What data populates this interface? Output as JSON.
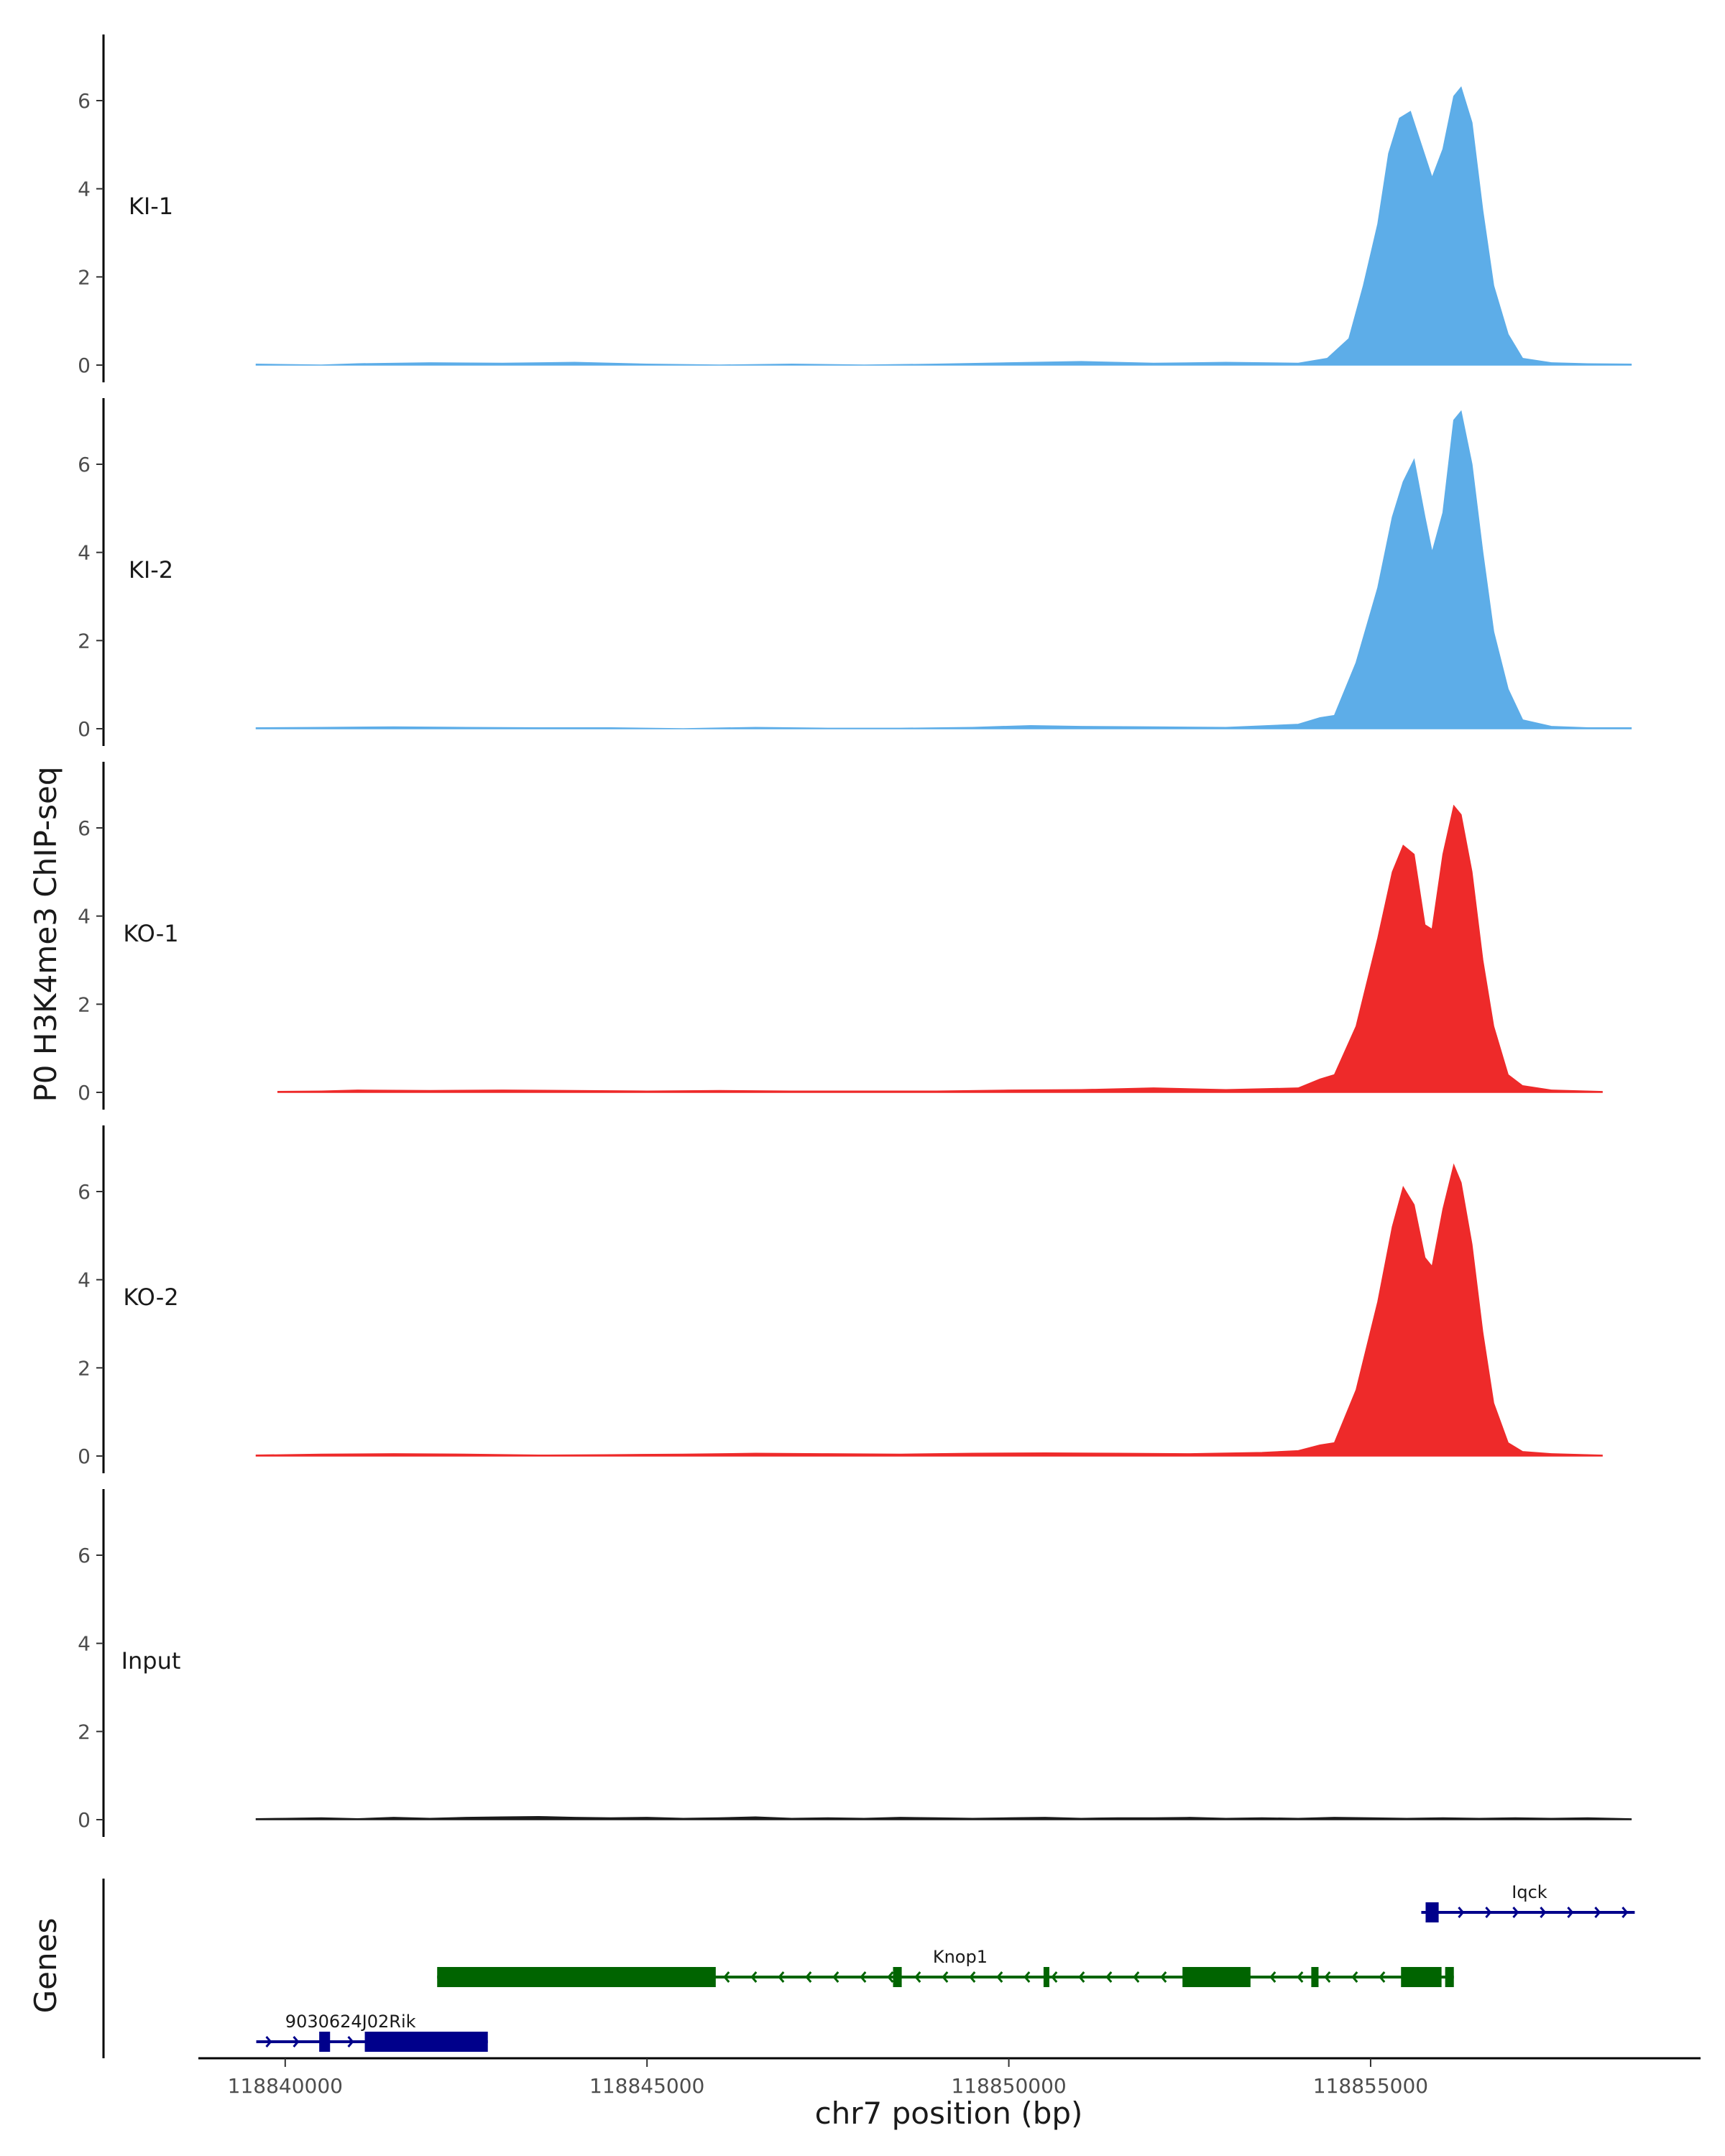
{
  "chart_data": {
    "type": "area",
    "title": "",
    "ylabel": "P0 H3K4me3 ChIP-seq",
    "xlabel": "chr7 position (bp)",
    "genes_label": "Genes",
    "xlim": [
      118838800,
      118859500
    ],
    "ylim": [
      0,
      7.5
    ],
    "y_ticks": [
      0,
      2,
      4,
      6
    ],
    "x_ticks": [
      118840000,
      118845000,
      118850000,
      118855000
    ],
    "x_tick_labels": [
      "118840000",
      "118845000",
      "118850000",
      "118855000"
    ],
    "grid": false,
    "tracks": [
      {
        "name": "KI-1",
        "color": "#5dade8",
        "points": [
          [
            118839600,
            0.02
          ],
          [
            118840500,
            0
          ],
          [
            118841000,
            0.03
          ],
          [
            118842000,
            0.05
          ],
          [
            118843000,
            0.04
          ],
          [
            118844000,
            0.06
          ],
          [
            118845000,
            0.02
          ],
          [
            118846000,
            0
          ],
          [
            118847000,
            0.02
          ],
          [
            118848000,
            0
          ],
          [
            118849000,
            0.02
          ],
          [
            118850000,
            0.05
          ],
          [
            118851000,
            0.08
          ],
          [
            118852000,
            0.04
          ],
          [
            118853000,
            0.06
          ],
          [
            118854000,
            0.04
          ],
          [
            118854400,
            0.15
          ],
          [
            118854700,
            0.6
          ],
          [
            118854900,
            1.8
          ],
          [
            118855100,
            3.2
          ],
          [
            118855250,
            4.8
          ],
          [
            118855400,
            5.6
          ],
          [
            118855550,
            5.75
          ],
          [
            118855700,
            5.0
          ],
          [
            118855850,
            4.25
          ],
          [
            118856000,
            4.9
          ],
          [
            118856150,
            6.1
          ],
          [
            118856250,
            6.3
          ],
          [
            118856400,
            5.5
          ],
          [
            118856550,
            3.5
          ],
          [
            118856700,
            1.8
          ],
          [
            118856900,
            0.7
          ],
          [
            118857100,
            0.15
          ],
          [
            118857500,
            0.05
          ],
          [
            118858000,
            0.03
          ],
          [
            118858600,
            0.02
          ]
        ]
      },
      {
        "name": "KI-2",
        "color": "#5dade8",
        "points": [
          [
            118839600,
            0.02
          ],
          [
            118840500,
            0.03
          ],
          [
            118841500,
            0.04
          ],
          [
            118842500,
            0.03
          ],
          [
            118843500,
            0.02
          ],
          [
            118844500,
            0.02
          ],
          [
            118845500,
            0
          ],
          [
            118846500,
            0.03
          ],
          [
            118847500,
            0.01
          ],
          [
            118848500,
            0.01
          ],
          [
            118849500,
            0.03
          ],
          [
            118850300,
            0.07
          ],
          [
            118851000,
            0.05
          ],
          [
            118852000,
            0.04
          ],
          [
            118853000,
            0.03
          ],
          [
            118854000,
            0.1
          ],
          [
            118854300,
            0.25
          ],
          [
            118854500,
            0.3
          ],
          [
            118854800,
            1.5
          ],
          [
            118855100,
            3.2
          ],
          [
            118855300,
            4.8
          ],
          [
            118855450,
            5.6
          ],
          [
            118855600,
            6.1
          ],
          [
            118855750,
            4.8
          ],
          [
            118855850,
            4.0
          ],
          [
            118856000,
            4.9
          ],
          [
            118856150,
            7.0
          ],
          [
            118856250,
            7.2
          ],
          [
            118856400,
            6.0
          ],
          [
            118856550,
            4.0
          ],
          [
            118856700,
            2.2
          ],
          [
            118856900,
            0.9
          ],
          [
            118857100,
            0.2
          ],
          [
            118857500,
            0.05
          ],
          [
            118858000,
            0.02
          ],
          [
            118858600,
            0.02
          ]
        ]
      },
      {
        "name": "KO-1",
        "color": "#ee2a2a",
        "points": [
          [
            118839900,
            0.02
          ],
          [
            118840500,
            0.03
          ],
          [
            118841000,
            0.05
          ],
          [
            118842000,
            0.04
          ],
          [
            118843000,
            0.05
          ],
          [
            118844000,
            0.04
          ],
          [
            118845000,
            0.03
          ],
          [
            118846000,
            0.04
          ],
          [
            118847000,
            0.03
          ],
          [
            118848000,
            0.03
          ],
          [
            118849000,
            0.03
          ],
          [
            118850000,
            0.05
          ],
          [
            118851000,
            0.06
          ],
          [
            118852000,
            0.1
          ],
          [
            118853000,
            0.06
          ],
          [
            118854000,
            0.1
          ],
          [
            118854300,
            0.3
          ],
          [
            118854500,
            0.4
          ],
          [
            118854800,
            1.5
          ],
          [
            118855100,
            3.5
          ],
          [
            118855300,
            5.0
          ],
          [
            118855450,
            5.6
          ],
          [
            118855600,
            5.4
          ],
          [
            118855750,
            3.8
          ],
          [
            118855850,
            3.7
          ],
          [
            118856000,
            5.4
          ],
          [
            118856150,
            6.5
          ],
          [
            118856250,
            6.3
          ],
          [
            118856400,
            5.0
          ],
          [
            118856550,
            3.0
          ],
          [
            118856700,
            1.5
          ],
          [
            118856900,
            0.4
          ],
          [
            118857100,
            0.15
          ],
          [
            118857500,
            0.05
          ],
          [
            118858200,
            0.02
          ]
        ]
      },
      {
        "name": "KO-2",
        "color": "#ee2a2a",
        "points": [
          [
            118839600,
            0.02
          ],
          [
            118840500,
            0.04
          ],
          [
            118841500,
            0.05
          ],
          [
            118842500,
            0.04
          ],
          [
            118843500,
            0.02
          ],
          [
            118844500,
            0.03
          ],
          [
            118845500,
            0.04
          ],
          [
            118846500,
            0.06
          ],
          [
            118847500,
            0.05
          ],
          [
            118848500,
            0.04
          ],
          [
            118849500,
            0.06
          ],
          [
            118850500,
            0.07
          ],
          [
            118851500,
            0.06
          ],
          [
            118852500,
            0.05
          ],
          [
            118853500,
            0.08
          ],
          [
            118854000,
            0.12
          ],
          [
            118854300,
            0.25
          ],
          [
            118854500,
            0.3
          ],
          [
            118854800,
            1.5
          ],
          [
            118855100,
            3.5
          ],
          [
            118855300,
            5.2
          ],
          [
            118855450,
            6.1
          ],
          [
            118855600,
            5.7
          ],
          [
            118855750,
            4.5
          ],
          [
            118855850,
            4.3
          ],
          [
            118856000,
            5.6
          ],
          [
            118856150,
            6.6
          ],
          [
            118856250,
            6.2
          ],
          [
            118856400,
            4.8
          ],
          [
            118856550,
            2.8
          ],
          [
            118856700,
            1.2
          ],
          [
            118856900,
            0.3
          ],
          [
            118857100,
            0.1
          ],
          [
            118857500,
            0.05
          ],
          [
            118858200,
            0.02
          ]
        ]
      },
      {
        "name": "Input",
        "color": "#1a1a1a",
        "points": [
          [
            118839600,
            0.02
          ],
          [
            118840000,
            0.03
          ],
          [
            118840500,
            0.04
          ],
          [
            118841000,
            0.02
          ],
          [
            118841500,
            0.05
          ],
          [
            118842000,
            0.03
          ],
          [
            118842500,
            0.05
          ],
          [
            118843000,
            0.06
          ],
          [
            118843500,
            0.07
          ],
          [
            118844000,
            0.05
          ],
          [
            118844500,
            0.04
          ],
          [
            118845000,
            0.05
          ],
          [
            118845500,
            0.03
          ],
          [
            118846000,
            0.04
          ],
          [
            118846500,
            0.06
          ],
          [
            118847000,
            0.03
          ],
          [
            118847500,
            0.04
          ],
          [
            118848000,
            0.03
          ],
          [
            118848500,
            0.05
          ],
          [
            118849000,
            0.04
          ],
          [
            118849500,
            0.03
          ],
          [
            118850000,
            0.04
          ],
          [
            118850500,
            0.05
          ],
          [
            118851000,
            0.03
          ],
          [
            118851500,
            0.04
          ],
          [
            118852000,
            0.04
          ],
          [
            118852500,
            0.05
          ],
          [
            118853000,
            0.03
          ],
          [
            118853500,
            0.04
          ],
          [
            118854000,
            0.03
          ],
          [
            118854500,
            0.05
          ],
          [
            118855000,
            0.04
          ],
          [
            118855500,
            0.03
          ],
          [
            118856000,
            0.04
          ],
          [
            118856500,
            0.03
          ],
          [
            118857000,
            0.04
          ],
          [
            118857500,
            0.03
          ],
          [
            118858000,
            0.04
          ],
          [
            118858600,
            0.02
          ]
        ]
      }
    ],
    "genes": [
      {
        "name": "Iqck",
        "strand": "+",
        "color": "#00008b",
        "row": 1,
        "start": 118855700,
        "end": 118858650,
        "exons": [
          [
            118855760,
            118855940
          ]
        ],
        "label_pos": 118856950
      },
      {
        "name": "Knop1",
        "strand": "-",
        "color": "#006400",
        "row": 2,
        "start": 118842100,
        "end": 118856150,
        "exons": [
          [
            118842100,
            118845950
          ],
          [
            118848400,
            118848520
          ],
          [
            118850480,
            118850560
          ],
          [
            118852400,
            118853340
          ],
          [
            118854180,
            118854280
          ],
          [
            118855420,
            118855980
          ],
          [
            118856030,
            118856150
          ]
        ],
        "label_pos": 118848950
      },
      {
        "name": "9030624J02Rik",
        "strand": "+",
        "color": "#00008b",
        "row": 3,
        "start": 118839600,
        "end": 118842800,
        "exons": [
          [
            118840470,
            118840620
          ],
          [
            118841100,
            118842800
          ]
        ],
        "label_pos": 118840000
      }
    ]
  }
}
